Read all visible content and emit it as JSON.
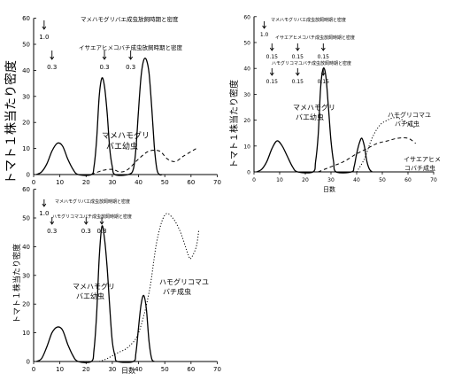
{
  "chart_data": [
    {
      "type": "line",
      "ylabel": "トマト１株当たり密度",
      "xlim": [
        0,
        70
      ],
      "ylim": [
        0,
        50
      ],
      "xticks": [
        "0",
        "10",
        "20",
        "30",
        "40",
        "50",
        "60",
        "70"
      ],
      "yticks": [
        "0",
        "10",
        "20",
        "30",
        "40",
        "50",
        "60"
      ],
      "release_rows": [
        {
          "label": "マメハモグリバエ成虫放飼時期と密度",
          "markers": [
            {
              "day": 4,
              "value": "1.0"
            }
          ]
        },
        {
          "label": "イサエアヒメコバチ成虫放飼時期と密度",
          "markers": [
            {
              "day": 7,
              "value": "0.3"
            },
            {
              "day": 27,
              "value": "0.3"
            },
            {
              "day": 37,
              "value": "0.3"
            }
          ]
        }
      ],
      "annotations": [
        "マメハモグリ",
        "バエ幼虫"
      ],
      "series": [
        {
          "style": "solid",
          "points": [
            [
              1,
              0
            ],
            [
              3,
              1
            ],
            [
              5,
              4
            ],
            [
              7,
              9
            ],
            [
              9,
              12
            ],
            [
              11,
              11
            ],
            [
              13,
              6
            ],
            [
              15,
              2
            ],
            [
              17,
              0
            ],
            [
              22,
              0
            ],
            [
              23,
              3
            ],
            [
              24,
              13
            ],
            [
              25,
              30
            ],
            [
              26,
              37
            ],
            [
              27,
              34
            ],
            [
              28,
              24
            ],
            [
              29,
              10
            ],
            [
              30,
              3
            ],
            [
              31,
              0
            ],
            [
              36,
              0
            ],
            [
              38,
              2
            ],
            [
              39,
              10
            ],
            [
              40,
              25
            ],
            [
              41,
              38
            ],
            [
              42,
              44
            ],
            [
              43,
              44
            ],
            [
              44,
              39
            ],
            [
              45,
              26
            ],
            [
              46,
              11
            ],
            [
              47,
              2
            ],
            [
              48,
              0
            ],
            [
              49,
              0
            ]
          ]
        },
        {
          "style": "dashed",
          "points": [
            [
              22,
              0
            ],
            [
              26,
              1.5
            ],
            [
              30,
              2
            ],
            [
              33,
              1
            ],
            [
              36,
              2
            ],
            [
              40,
              6
            ],
            [
              44,
              9
            ],
            [
              48,
              9
            ],
            [
              51,
              6
            ],
            [
              54,
              5
            ],
            [
              57,
              7
            ],
            [
              62,
              10
            ]
          ]
        }
      ]
    },
    {
      "type": "line",
      "ylabel": "トマト１株当たり密度",
      "xlabel": "日数",
      "xlim": [
        0,
        70
      ],
      "ylim": [
        0,
        50
      ],
      "xticks": [
        "0",
        "10",
        "20",
        "30",
        "40",
        "50",
        "60",
        "70"
      ],
      "yticks": [
        "0",
        "10",
        "20",
        "30",
        "40",
        "50",
        "60"
      ],
      "release_rows": [
        {
          "label": "マメハモグリバエ成虫放飼時期と密度",
          "markers": [
            {
              "day": 4,
              "value": "1.0"
            }
          ]
        },
        {
          "label": "イサエアヒメコバチ成虫放飼時期と密度",
          "markers": [
            {
              "day": 7,
              "value": "0.15"
            },
            {
              "day": 17,
              "value": "0.15"
            },
            {
              "day": 27,
              "value": "0.15"
            }
          ]
        },
        {
          "label": "ハモグリコマユバチ成虫放飼時期と密度",
          "markers": [
            {
              "day": 7,
              "value": "0.15"
            },
            {
              "day": 17,
              "value": "0.15"
            },
            {
              "day": 27,
              "value": "0.15"
            }
          ]
        }
      ],
      "annotations": [
        "マメハモグリ",
        "バエ幼虫",
        "ハモグリコマユ",
        "バチ成虫",
        "イサエアヒメ",
        "コバチ成虫"
      ],
      "series": [
        {
          "style": "solid",
          "points": [
            [
              1,
              0
            ],
            [
              3,
              1
            ],
            [
              5,
              4
            ],
            [
              7,
              9
            ],
            [
              9,
              12
            ],
            [
              11,
              10
            ],
            [
              13,
              6
            ],
            [
              15,
              2
            ],
            [
              17,
              0
            ],
            [
              23,
              0
            ],
            [
              24,
              4
            ],
            [
              25,
              14
            ],
            [
              26,
              33
            ],
            [
              27,
              40
            ],
            [
              28,
              37
            ],
            [
              29,
              25
            ],
            [
              30,
              12
            ],
            [
              31,
              4
            ],
            [
              32,
              0
            ],
            [
              38,
              0
            ],
            [
              39,
              2
            ],
            [
              40,
              7
            ],
            [
              41,
              11
            ],
            [
              42,
              13
            ],
            [
              43,
              10
            ],
            [
              44,
              4
            ],
            [
              45,
              1
            ],
            [
              46,
              0
            ]
          ]
        },
        {
          "style": "dashed",
          "points": [
            [
              25,
              0
            ],
            [
              30,
              2
            ],
            [
              35,
              4
            ],
            [
              40,
              7
            ],
            [
              44,
              9
            ],
            [
              48,
              11
            ],
            [
              52,
              12
            ],
            [
              56,
              13
            ],
            [
              60,
              13
            ],
            [
              63,
              11
            ]
          ]
        },
        {
          "style": "dotted",
          "points": [
            [
              40,
              0
            ],
            [
              43,
              5
            ],
            [
              46,
              13
            ],
            [
              49,
              18
            ],
            [
              52,
              20
            ],
            [
              55,
              21
            ],
            [
              58,
              20
            ],
            [
              61,
              18
            ],
            [
              63,
              17
            ]
          ]
        }
      ]
    },
    {
      "type": "line",
      "ylabel": "トマト１株当たり密度",
      "xlabel": "日数",
      "xlim": [
        0,
        70
      ],
      "ylim": [
        0,
        50
      ],
      "xticks": [
        "0",
        "10",
        "20",
        "30",
        "40",
        "50",
        "60",
        "70"
      ],
      "yticks": [
        "0",
        "10",
        "20",
        "30",
        "40",
        "50",
        "60"
      ],
      "release_rows": [
        {
          "label": "マメハモグリバエ成虫放飼時期と密度",
          "markers": [
            {
              "day": 4,
              "value": "1.0"
            }
          ]
        },
        {
          "label": "ハモグリコマユバチ成虫放飼時期と密度",
          "markers": [
            {
              "day": 7,
              "value": "0.3"
            },
            {
              "day": 20,
              "value": "0.3"
            },
            {
              "day": 26,
              "value": "0.3"
            }
          ]
        }
      ],
      "annotations": [
        "マメハモグリ",
        "バエ幼虫",
        "ハモグリコマユ",
        "バチ成虫"
      ],
      "series": [
        {
          "style": "solid",
          "points": [
            [
              1,
              0
            ],
            [
              3,
              1
            ],
            [
              5,
              5
            ],
            [
              7,
              10
            ],
            [
              9,
              12
            ],
            [
              11,
              11
            ],
            [
              13,
              6
            ],
            [
              15,
              2
            ],
            [
              17,
              0
            ],
            [
              22,
              0
            ],
            [
              23,
              4
            ],
            [
              24,
              16
            ],
            [
              25,
              36
            ],
            [
              26,
              47
            ],
            [
              27,
              43
            ],
            [
              28,
              33
            ],
            [
              29,
              19
            ],
            [
              30,
              7
            ],
            [
              31,
              2
            ],
            [
              32,
              0
            ],
            [
              38,
              0
            ],
            [
              39,
              3
            ],
            [
              40,
              12
            ],
            [
              41,
              20
            ],
            [
              42,
              23
            ],
            [
              43,
              18
            ],
            [
              44,
              7
            ],
            [
              45,
              1
            ],
            [
              46,
              0
            ]
          ]
        },
        {
          "style": "dotted",
          "points": [
            [
              25,
              0
            ],
            [
              28,
              1
            ],
            [
              32,
              3
            ],
            [
              36,
              5
            ],
            [
              40,
              10
            ],
            [
              44,
              24
            ],
            [
              47,
              42
            ],
            [
              50,
              51
            ],
            [
              53,
              50
            ],
            [
              56,
              45
            ],
            [
              59,
              37
            ],
            [
              60,
              36
            ],
            [
              62,
              40
            ],
            [
              63,
              46
            ]
          ]
        }
      ]
    }
  ]
}
